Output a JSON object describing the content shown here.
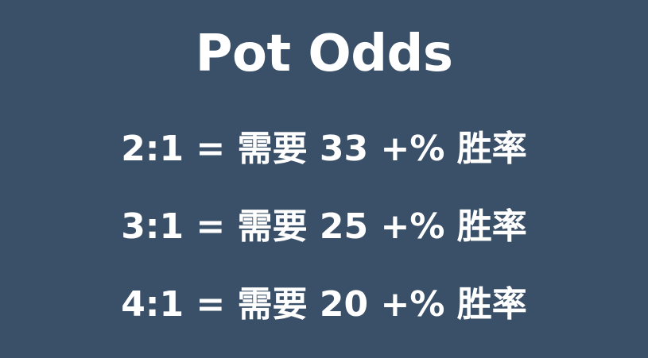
{
  "slide": {
    "title": "Pot Odds",
    "background_color": "#3a5068",
    "text_color": "#ffffff",
    "rows": [
      {
        "ratio": "2:1",
        "eq": "=",
        "label": "需要",
        "pct": "33",
        "suffix": "+%",
        "win": "胜率"
      },
      {
        "ratio": "3:1",
        "eq": "=",
        "label": "需要",
        "pct": "25",
        "suffix": "+%",
        "win": "胜率"
      },
      {
        "ratio": "4:1",
        "eq": "=",
        "label": "需要",
        "pct": "20",
        "suffix": "+%",
        "win": "胜率"
      }
    ]
  }
}
